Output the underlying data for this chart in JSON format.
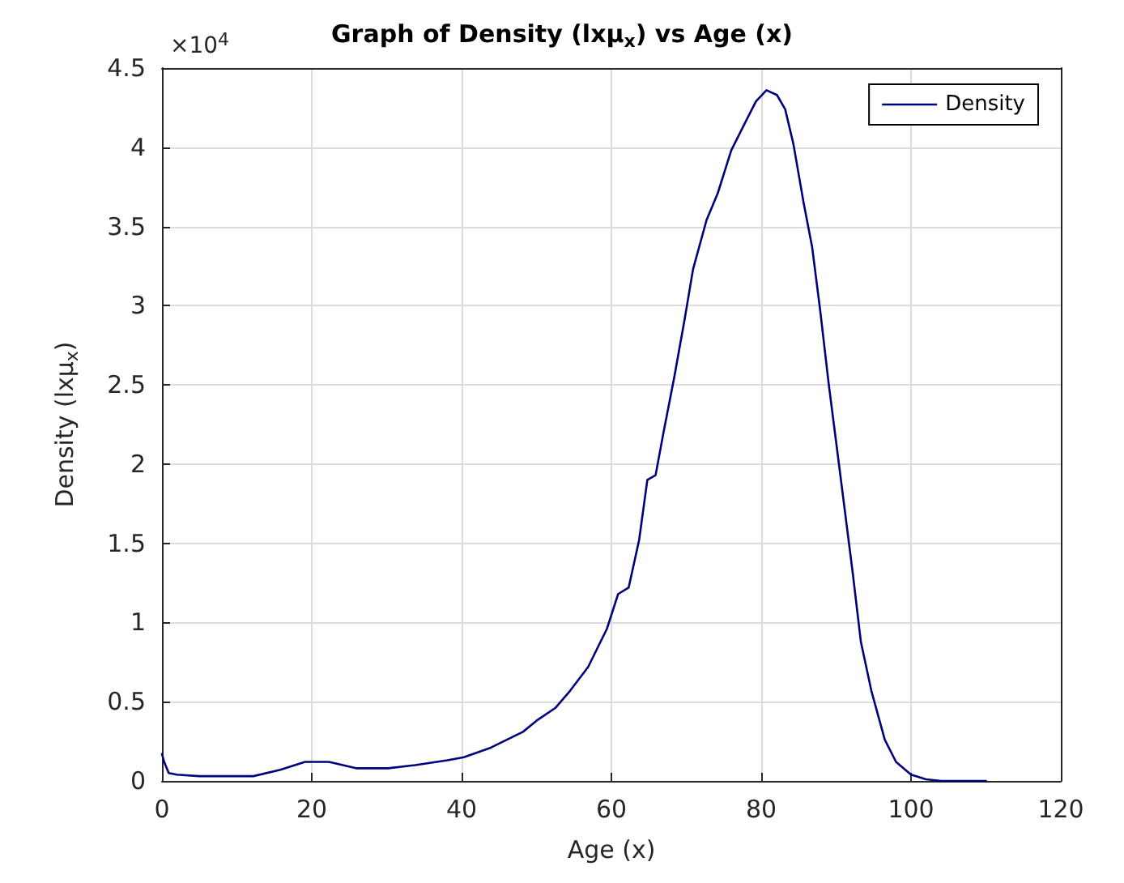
{
  "chart_data": {
    "type": "line",
    "title": "Graph of Density (lxμ$_{x}$) vs Age (x)",
    "xlabel": "Age (x)",
    "ylabel": "Density (lxμ$_{x}$)",
    "annotations": [
      "×10$^{4}$"
    ],
    "series": [
      {
        "name": "Density",
        "color": "#00007f",
        "x": [
          0,
          0.3,
          0.9,
          2,
          5,
          12.2,
          15.8,
          19.1,
          22.3,
          25.9,
          30.2,
          33.8,
          38.1,
          40.3,
          43.9,
          48.2,
          50,
          52.5,
          54.5,
          56.9,
          59.4,
          60.9,
          62.3,
          63.7,
          64.8,
          65.9,
          67.0,
          68.4,
          69.8,
          70.9,
          72.7,
          74.2,
          76.0,
          77.8,
          79.3,
          80.7,
          82.1,
          83.2,
          84.3,
          85.7,
          86.8,
          87.9,
          89.0,
          90.0,
          91.1,
          92.2,
          93.3,
          94.7,
          96.5,
          98,
          100,
          102,
          104,
          110
        ],
        "values": [
          0.17,
          0.12,
          0.05,
          0.04,
          0.03,
          0.03,
          0.07,
          0.12,
          0.12,
          0.08,
          0.08,
          0.1,
          0.13,
          0.15,
          0.21,
          0.31,
          0.38,
          0.46,
          0.57,
          0.72,
          0.96,
          1.18,
          1.22,
          1.52,
          1.9,
          1.93,
          2.21,
          2.55,
          2.92,
          3.23,
          3.54,
          3.71,
          3.98,
          4.15,
          4.29,
          4.36,
          4.33,
          4.24,
          4.02,
          3.64,
          3.37,
          2.96,
          2.51,
          2.14,
          1.73,
          1.32,
          0.88,
          0.57,
          0.26,
          0.12,
          0.04,
          0.01,
          0,
          0
        ]
      }
    ],
    "xlim": [
      0,
      120
    ],
    "xticks": [
      0,
      20,
      40,
      60,
      80,
      100,
      120
    ],
    "ylim": [
      0,
      4.5
    ],
    "yticks": [
      0,
      0.5,
      1,
      1.5,
      2,
      2.5,
      3,
      3.5,
      4,
      4.5
    ],
    "grid": true,
    "legend": "top right",
    "marker": "none",
    "line_style": "solid"
  }
}
